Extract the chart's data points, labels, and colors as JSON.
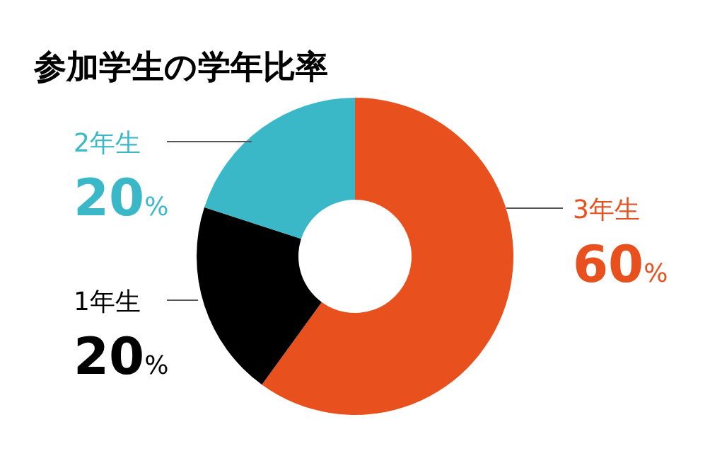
{
  "chart_data": {
    "type": "donut",
    "title": "参加学生の学年比率",
    "categories": [
      "3年生",
      "1年生",
      "2年生"
    ],
    "values": [
      60,
      20,
      20
    ],
    "colors": [
      "#e8501e",
      "#000000",
      "#3bb8c8"
    ],
    "value_labels": [
      "60%",
      "20%",
      "20%"
    ]
  }
}
